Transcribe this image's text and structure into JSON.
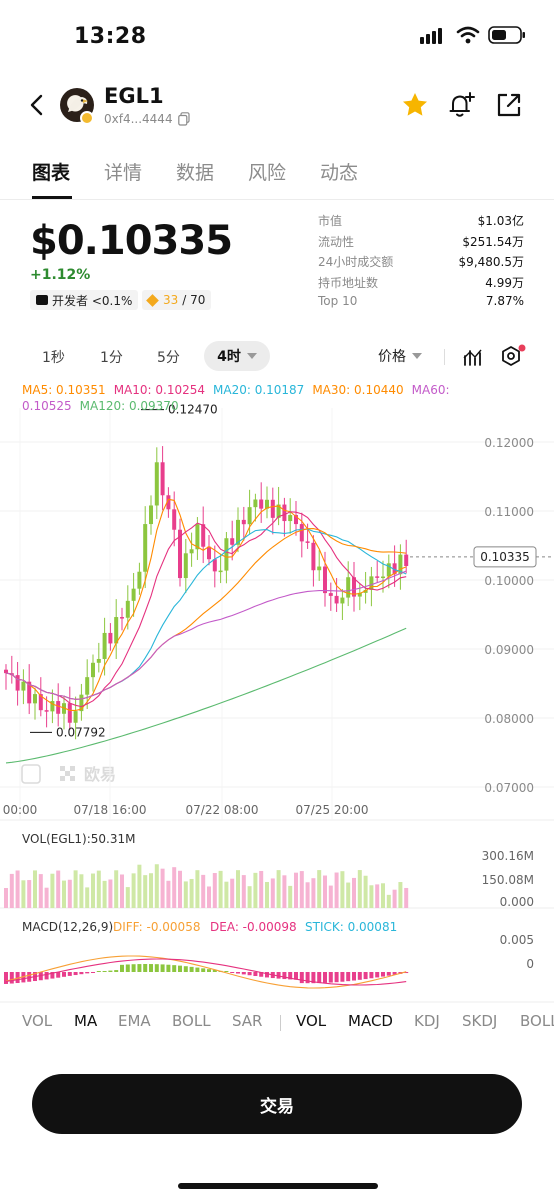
{
  "status": {
    "time": "13:28"
  },
  "header": {
    "token_name": "EGL1",
    "address": "0xf4...4444"
  },
  "tabs": [
    "图表",
    "详情",
    "数据",
    "风险",
    "动态"
  ],
  "summary": {
    "price": "$0.10335",
    "change": "+1.12%",
    "dev_label": "开发者 <0.1%",
    "score_value": "33",
    "score_total": " / 70"
  },
  "stats": [
    {
      "key": "市值",
      "value": "$1.03亿"
    },
    {
      "key": "流动性",
      "value": "$251.54万"
    },
    {
      "key": "24小时成交额",
      "value": "$9,480.5万"
    },
    {
      "key": "持币地址数",
      "value": "4.99万"
    },
    {
      "key": "Top 10",
      "value": "7.87%"
    }
  ],
  "timeframes": [
    "1秒",
    "1分",
    "5分"
  ],
  "timeframe_active": "4时",
  "price_selector": "价格",
  "ma_legend": {
    "ma5": "MA5: 0.10351",
    "ma10": "MA10: 0.10254",
    "ma20": "MA20: 0.10187",
    "ma30": "MA30: 0.10440",
    "ma60": "MA60: 0.10525",
    "ma120": "MA120: 0.09370"
  },
  "colors": {
    "up": "#8cc63f",
    "down": "#e83e8c",
    "ma5": "#ff8b00",
    "ma10": "#e5317f",
    "ma20": "#29b6d9",
    "ma30": "#ff8b00",
    "ma60": "#c35bc9",
    "ma120": "#5bba6f",
    "diff": "#f7a035",
    "dea": "#e5317f",
    "stick": "#29b6d9"
  },
  "watermark": "欧易",
  "indicators_main": [
    "VOL",
    "MA",
    "EMA",
    "BOLL",
    "SAR"
  ],
  "indicators_sub": [
    "VOL",
    "MACD",
    "KDJ",
    "SKDJ",
    "BOLL"
  ],
  "trade_button": "交易",
  "chart_data": {
    "type": "candlestick",
    "y_ticks": [
      "0.12000",
      "0.11000",
      "0.10000",
      "0.09000",
      "0.08000",
      "0.07000"
    ],
    "ylim": [
      0.07,
      0.124
    ],
    "x_ticks": [
      "00:00",
      "07/18 16:00",
      "07/22 08:00",
      "07/25 20:00"
    ],
    "current_price": "0.10335",
    "high_label": "0.12470",
    "low_label": "0.07792",
    "volume": {
      "label": "VOL(EGL1):50.31M",
      "y_ticks": [
        "300.16M",
        "150.08M",
        "0.000"
      ]
    },
    "macd": {
      "label": "MACD(12,26,9)",
      "diff": "DIFF: -0.00058",
      "dea": "DEA: -0.00098",
      "stick": "STICK: 0.00081",
      "y_ticks": [
        "0.005",
        "0"
      ]
    }
  }
}
